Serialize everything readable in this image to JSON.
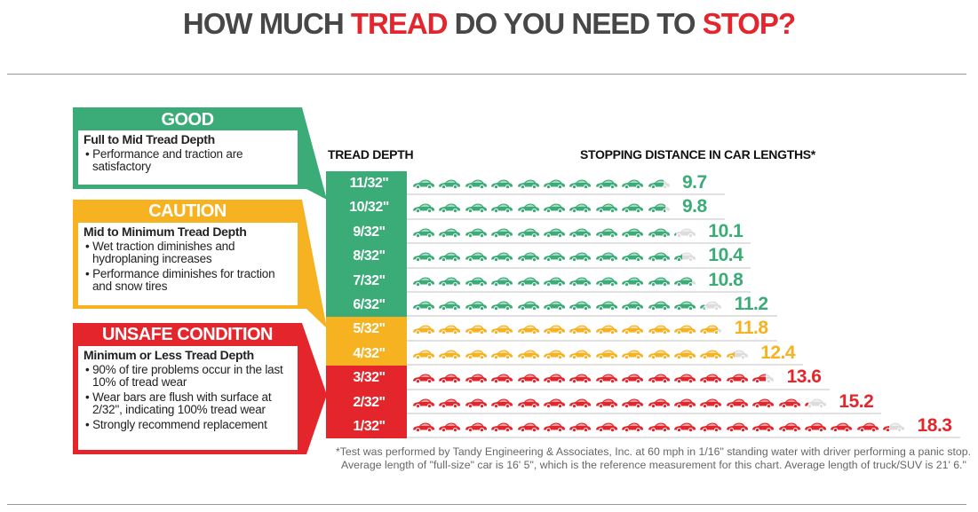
{
  "title": {
    "part1": "HOW MUCH ",
    "part2": "TREAD",
    "part3": " DO YOU NEED TO ",
    "part4": "STOP?"
  },
  "colors": {
    "good": "#3bab78",
    "caution": "#f6b221",
    "unsafe": "#e4262c",
    "title_gray": "#474747",
    "remainder": "#dcdcdc"
  },
  "panels": [
    {
      "heading": "GOOD",
      "subtitle": "Full to Mid Tread Depth",
      "bullets": [
        "• Performance and traction are satisfactory"
      ]
    },
    {
      "heading": "CAUTION",
      "subtitle": "Mid to Minimum Tread Depth",
      "bullets": [
        "• Wet traction diminishes and hydroplaning increases",
        "• Performance diminishes for traction and snow tires"
      ]
    },
    {
      "heading": "UNSAFE CONDITION",
      "subtitle": "Minimum or Less Tread Depth",
      "bullets": [
        "• 90% of tire problems occur in the last 10% of tread wear",
        "• Wear bars are flush with surface at 2/32\", indicating 100% tread wear",
        "• Strongly recommend replacement"
      ]
    }
  ],
  "chart_data": {
    "type": "bar",
    "xlabel": "TREAD DEPTH",
    "ylabel": "STOPPING DISTANCE IN CAR LENGTHS*",
    "categories": [
      "11/32\"",
      "10/32\"",
      "9/32\"",
      "8/32\"",
      "7/32\"",
      "6/32\"",
      "5/32\"",
      "4/32\"",
      "3/32\"",
      "2/32\"",
      "1/32\""
    ],
    "values": [
      9.7,
      9.8,
      10.1,
      10.4,
      10.8,
      11.2,
      11.8,
      12.4,
      13.6,
      15.2,
      18.3
    ],
    "labels": [
      "9.7",
      "9.8",
      "10.1",
      "10.4",
      "10.8",
      "11.2",
      "11.8",
      "12.4",
      "13.6",
      "15.2",
      "18.3"
    ],
    "zones": [
      "good",
      "good",
      "good",
      "good",
      "good",
      "good",
      "caution",
      "caution",
      "unsafe",
      "unsafe",
      "unsafe"
    ],
    "mark_icon": "car-icon"
  },
  "footnote": "*Test was performed by Tandy Engineering & Associates, Inc. at 60 mph in 1/16\" standing water with driver performing a panic stop. Average length of \"full-size\" car is 16' 5\", which is the reference measurement for this chart. Average length of truck/SUV is 21' 6.\""
}
